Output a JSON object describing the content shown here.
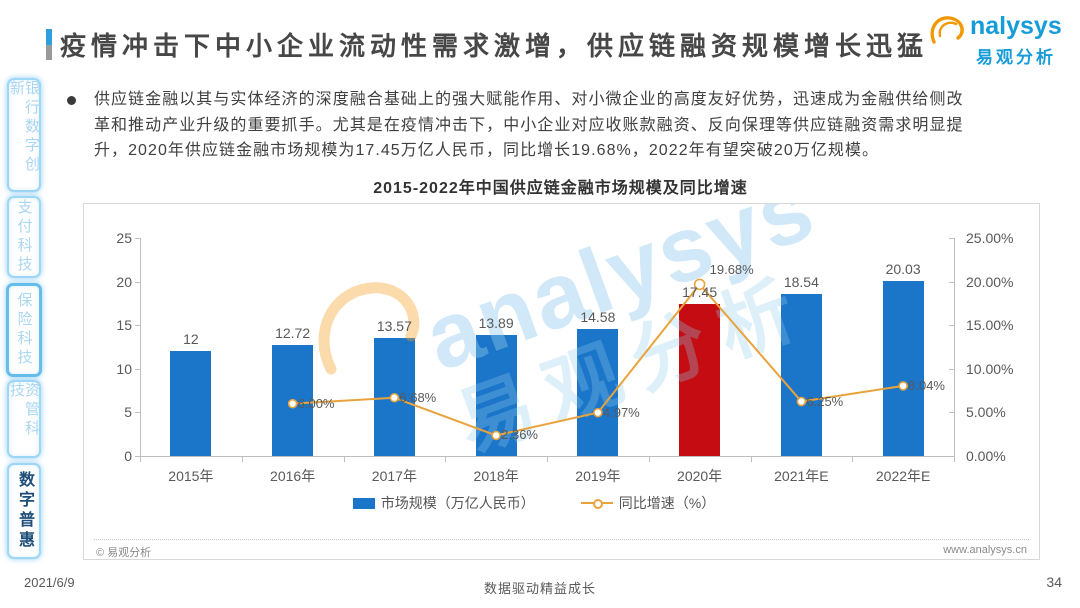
{
  "header": {
    "title": "疫情冲击下中小企业流动性需求激增，供应链融资规模增长迅猛",
    "logo": {
      "brand_en": "nalysys",
      "brand_cn": "易观分析"
    }
  },
  "sidebar": {
    "items": [
      {
        "label": "银行数字创新",
        "active": false
      },
      {
        "label": "支付科技",
        "active": false
      },
      {
        "label": "保险科技",
        "active": false
      },
      {
        "label": "资管科技",
        "active": false
      },
      {
        "label": "数字普惠",
        "active": true
      }
    ]
  },
  "bullet": {
    "lines": [
      "供应链金融以其与实体经济的深度融合基础上的强大赋能作用、对小微企业的高度友好优势，迅速成为金融供给侧改",
      "革和推动产业升级的重要抓手。尤其是在疫情冲击下，中小企业对应收账款融资、反向保理等供应链融资需求明显提",
      "升，2020年供应链金融市场规模为17.45万亿人民币，同比增长19.68%，2022年有望突破20万亿规模。"
    ]
  },
  "chart_data": {
    "type": "bar",
    "title": "2015-2022年中国供应链金融市场规模及同比增速",
    "categories": [
      "2015年",
      "2016年",
      "2017年",
      "2018年",
      "2019年",
      "2020年",
      "2021年E",
      "2022年E"
    ],
    "series": [
      {
        "name": "市场规模（万亿人民币）",
        "type": "bar",
        "axis": "left",
        "values": [
          12,
          12.72,
          13.57,
          13.89,
          14.58,
          17.45,
          18.54,
          20.03
        ],
        "labels": [
          "12",
          "12.72",
          "13.57",
          "13.89",
          "14.58",
          "17.45",
          "18.54",
          "20.03"
        ],
        "color": "#1b75c8",
        "highlight_index": 5,
        "highlight_color": "#c50c12"
      },
      {
        "name": "同比增速（%）",
        "type": "line",
        "axis": "right",
        "values": [
          null,
          6.0,
          6.68,
          2.36,
          4.97,
          19.68,
          6.25,
          8.04
        ],
        "labels": [
          null,
          "6.00%",
          "6.68%",
          "2.36%",
          "4.97%",
          "19.68%",
          "6.25%",
          "8.04%"
        ],
        "color": "#e8a33c"
      }
    ],
    "left_axis": {
      "min": 0,
      "max": 25,
      "ticks": [
        "0",
        "5",
        "10",
        "15",
        "20",
        "25"
      ]
    },
    "right_axis": {
      "min": 0,
      "max": 25,
      "ticks": [
        "0.00%",
        "5.00%",
        "10.00%",
        "15.00%",
        "20.00%",
        "25.00%"
      ]
    },
    "legend": [
      "市场规模（万亿人民币）",
      "同比增速（%）"
    ],
    "legend_position": "bottom",
    "grid": false
  },
  "panel": {
    "copyright": "© 易观分析",
    "website": "www.analysys.cn",
    "watermark": {
      "text_en": "analysys",
      "text_cn": "易观分析"
    }
  },
  "footer": {
    "date": "2021/6/9",
    "slogan": "数据驱动精益成长",
    "page": "34"
  }
}
